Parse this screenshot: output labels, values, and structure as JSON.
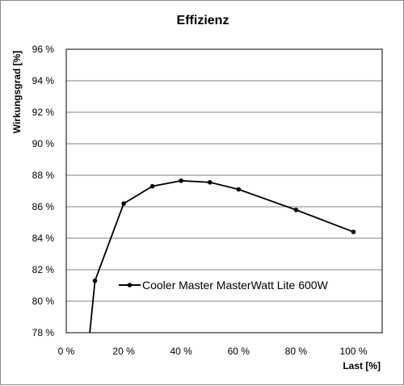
{
  "chart_data": {
    "type": "line",
    "title": "Effizienz",
    "xlabel": "Last [%]",
    "ylabel": "Wirkungsgrad [%]",
    "xlim": [
      0,
      110
    ],
    "ylim": [
      78,
      96
    ],
    "x_ticks": [
      0,
      20,
      40,
      60,
      80,
      100
    ],
    "x_tick_labels": [
      "0 %",
      "20 %",
      "40 %",
      "60 %",
      "80 %",
      "100 %"
    ],
    "y_ticks": [
      78,
      80,
      82,
      84,
      86,
      88,
      90,
      92,
      94,
      96
    ],
    "y_tick_labels": [
      "78 %",
      "80 %",
      "82 %",
      "84 %",
      "86 %",
      "88 %",
      "90 %",
      "92 %",
      "94 %",
      "96 %"
    ],
    "grid": "horizontal",
    "legend_position": "inside-lower-left",
    "series": [
      {
        "name": "Cooler Master MasterWatt Lite 600W",
        "color": "#000000",
        "x": [
          10,
          20,
          30,
          40,
          50,
          60,
          80,
          100
        ],
        "y": [
          81.3,
          86.2,
          87.3,
          87.65,
          87.55,
          87.1,
          85.8,
          84.4
        ],
        "clip_segment_from": [
          8.2,
          78
        ]
      }
    ]
  }
}
